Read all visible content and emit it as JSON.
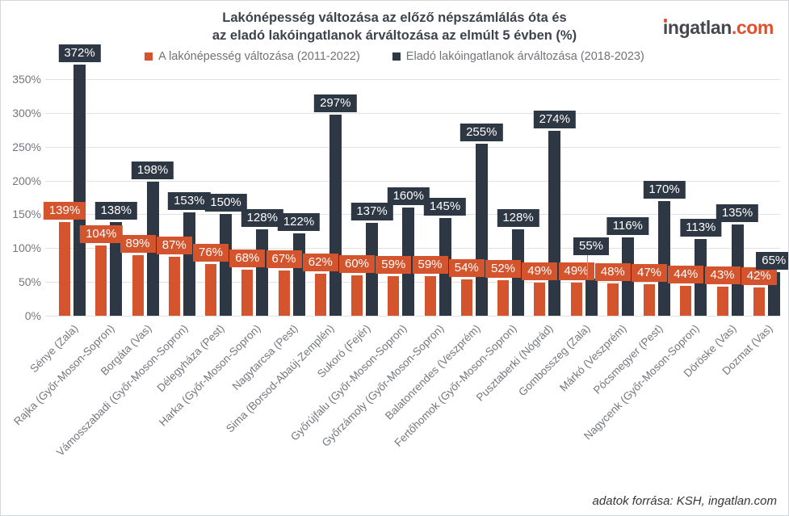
{
  "header": {
    "title_line1": "Lakónépesség változása az előző népszámlálás óta és",
    "title_line2": "az eladó lakóingatlanok árváltozása az elmúlt 5 évben (%)",
    "logo": {
      "brand": "ingatlan",
      "tld": ".com"
    }
  },
  "footer": {
    "source": "adatok forrása: KSH, ingatlan.com"
  },
  "colors": {
    "population": "#d4552d",
    "price": "#2e3744",
    "grid": "#e0e1e3",
    "axis_text": "#74777d",
    "brand_orange": "#e0502c"
  },
  "chart_data": {
    "type": "bar",
    "title": "Lakónépesség változása az előző népszámlálás óta és az eladó lakóingatlanok árváltozása az elmúlt 5 évben (%)",
    "categories": [
      "Sénye (Zala)",
      "Rajka (Győr-Moson-Sopron)",
      "Borgáta (Vas)",
      "Vámosszabadi (Győr-Moson-Sopron)",
      "Délegyháza (Pest)",
      "Harka (Győr-Moson-Sopron)",
      "Nagytarcsa (Pest)",
      "Sima (Borsod-Abaúj-Zemplén)",
      "Sukoró (Fejér)",
      "Győrújfalu (Győr-Moson-Sopron)",
      "Győrzámoly (Győr-Moson-Sopron)",
      "Balatonrendes (Veszprém)",
      "Fertőhomok (Győr-Moson-Sopron)",
      "Pusztaberki (Nógrád)",
      "Gombosszeg (Zala)",
      "Márkó (Veszprém)",
      "Pócsmegyer (Pest)",
      "Nagycenk (Győr-Moson-Sopron)",
      "Döröske (Vas)",
      "Dozmat (Vas)"
    ],
    "series": [
      {
        "name": "A lakónépesség változása (2011-2022)",
        "color": "#d4552d",
        "values": [
          139,
          104,
          89,
          87,
          76,
          68,
          67,
          62,
          60,
          59,
          59,
          54,
          52,
          49,
          49,
          48,
          47,
          44,
          43,
          42
        ]
      },
      {
        "name": "Eladó lakóingatlanok árváltozása (2018-2023)",
        "color": "#2e3744",
        "values": [
          372,
          138,
          198,
          153,
          150,
          128,
          122,
          297,
          137,
          160,
          145,
          255,
          128,
          274,
          55,
          116,
          170,
          113,
          135,
          65
        ]
      }
    ],
    "data_label_suffix": "%",
    "y_ticks": [
      "0%",
      "50%",
      "100%",
      "150%",
      "200%",
      "250%",
      "300%",
      "350%"
    ],
    "y_tick_values": [
      0,
      50,
      100,
      150,
      200,
      250,
      300,
      350
    ],
    "ylim": [
      0,
      350
    ],
    "grid": true,
    "legend_position": "top",
    "data_labels": true,
    "label_adjustments": [
      {
        "series": 1,
        "index": 14,
        "dy": -26,
        "leader": true
      }
    ]
  }
}
